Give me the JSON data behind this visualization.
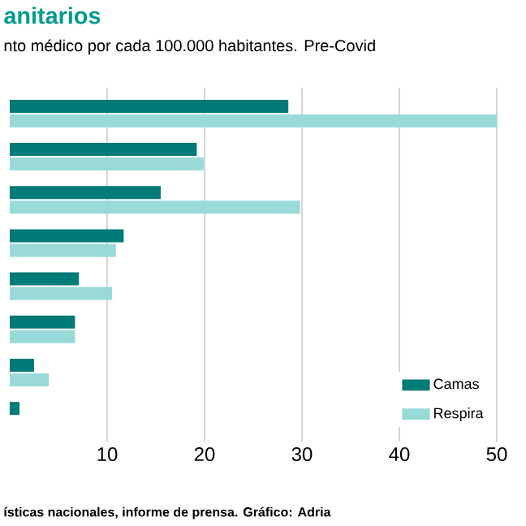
{
  "chart_data": {
    "type": "bar",
    "orientation": "horizontal",
    "title": "anitarios",
    "subtitle": "nto médico por cada 100.000 habitantes. Pre-Covid",
    "categories": [
      null,
      null,
      null,
      null,
      null,
      null,
      null,
      null
    ],
    "series": [
      {
        "name": "Camas",
        "color": "#007b78",
        "values": [
          28.6,
          19.2,
          15.5,
          11.7,
          7.1,
          6.7,
          2.5,
          1.0
        ]
      },
      {
        "name": "Respira",
        "color": "#98dad8",
        "values": [
          50,
          19.9,
          29.8,
          10.9,
          10.5,
          6.7,
          4.0,
          null
        ]
      }
    ],
    "xlim": [
      0,
      50
    ],
    "xticks": [
      10,
      20,
      30,
      40,
      50
    ],
    "grid": "x",
    "legend": "bottom right",
    "annotations": [
      "ísticas nacionales, informe de prensa. Gráfico: Adria"
    ]
  }
}
